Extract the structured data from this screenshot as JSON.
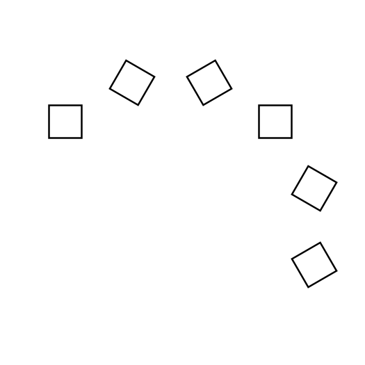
{
  "diagram": {
    "shape_count": 6,
    "shapes": [
      {
        "kind": "square",
        "rotation_deg": 0
      },
      {
        "kind": "square",
        "rotation_deg": 30
      },
      {
        "kind": "square",
        "rotation_deg": -30
      },
      {
        "kind": "square",
        "rotation_deg": 0
      },
      {
        "kind": "square",
        "rotation_deg": 30
      },
      {
        "kind": "square",
        "rotation_deg": -30
      }
    ],
    "stroke_color": "#000000",
    "fill_color": "#ffffff",
    "background_color": "#ffffff"
  }
}
